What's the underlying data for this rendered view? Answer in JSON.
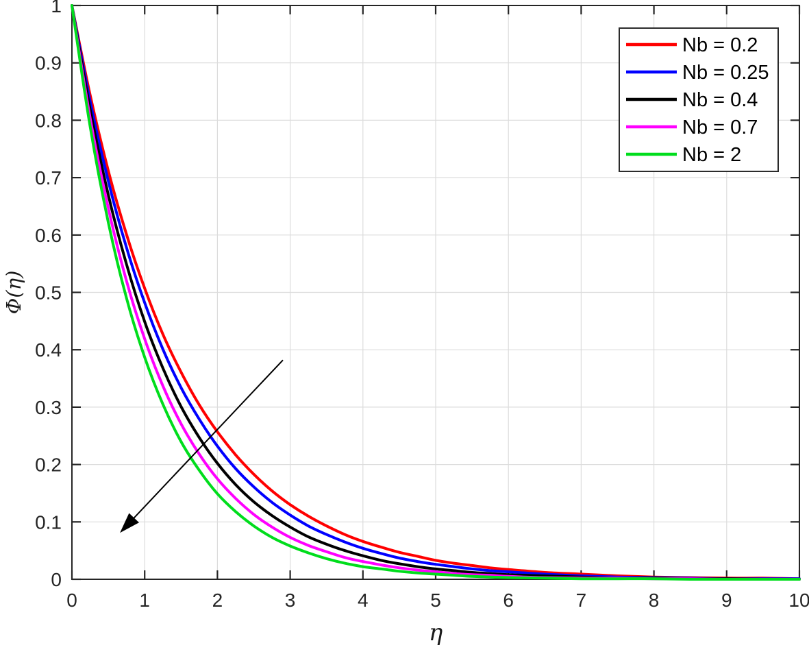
{
  "figure": {
    "background": "#ffffff",
    "axis_color": "#252525",
    "grid_color": "#dcdcdc",
    "legend_border_color": "#2b2b2b",
    "legend_background": "#ffffff",
    "arrow_color": "#000000"
  },
  "chart_data": {
    "type": "line",
    "title": "",
    "xlabel": "η",
    "ylabel": "Φ(η)",
    "xlim": [
      0,
      10
    ],
    "ylim": [
      0,
      1
    ],
    "xticks": [
      0,
      1,
      2,
      3,
      4,
      5,
      6,
      7,
      8,
      9,
      10
    ],
    "yticks": [
      0,
      0.1,
      0.2,
      0.3,
      0.4,
      0.5,
      0.6,
      0.7,
      0.8,
      0.9,
      1
    ],
    "grid": true,
    "legend_position": "top-right",
    "x": [
      0,
      0.25,
      0.5,
      0.75,
      1,
      1.25,
      1.5,
      1.75,
      2,
      2.25,
      2.5,
      2.75,
      3,
      3.25,
      3.5,
      3.75,
      4,
      4.25,
      4.5,
      4.75,
      5,
      5.25,
      5.5,
      5.75,
      6,
      6.5,
      7,
      7.5,
      8,
      8.5,
      9,
      9.5,
      10
    ],
    "series": [
      {
        "name": "Nb = 0.2",
        "color": "#ff0000",
        "values": [
          1,
          0.844,
          0.712,
          0.601,
          0.507,
          0.427,
          0.361,
          0.304,
          0.257,
          0.217,
          0.183,
          0.154,
          0.13,
          0.11,
          0.093,
          0.078,
          0.066,
          0.056,
          0.047,
          0.04,
          0.033,
          0.028,
          0.024,
          0.02,
          0.017,
          0.012,
          0.009,
          0.006,
          0.004,
          0.003,
          0.002,
          0.002,
          0.001
        ]
      },
      {
        "name": "Nb = 0.25",
        "color": "#0000ff",
        "values": [
          1,
          0.833,
          0.694,
          0.578,
          0.482,
          0.401,
          0.334,
          0.279,
          0.232,
          0.193,
          0.161,
          0.134,
          0.112,
          0.093,
          0.078,
          0.065,
          0.054,
          0.045,
          0.037,
          0.031,
          0.026,
          0.022,
          0.018,
          0.015,
          0.013,
          0.009,
          0.006,
          0.004,
          0.003,
          0.002,
          0.001,
          0.001,
          0.001
        ]
      },
      {
        "name": "Nb = 0.4",
        "color": "#000000",
        "values": [
          1,
          0.819,
          0.67,
          0.549,
          0.449,
          0.368,
          0.301,
          0.247,
          0.202,
          0.165,
          0.135,
          0.111,
          0.091,
          0.074,
          0.061,
          0.05,
          0.041,
          0.033,
          0.027,
          0.022,
          0.018,
          0.015,
          0.012,
          0.01,
          0.008,
          0.006,
          0.004,
          0.002,
          0.002,
          0.001,
          0.001,
          0,
          0
        ]
      },
      {
        "name": "Nb = 0.7",
        "color": "#ff00ff",
        "values": [
          1,
          0.804,
          0.647,
          0.52,
          0.419,
          0.337,
          0.271,
          0.218,
          0.175,
          0.141,
          0.113,
          0.091,
          0.073,
          0.059,
          0.048,
          0.038,
          0.031,
          0.025,
          0.02,
          0.016,
          0.013,
          0.01,
          0.008,
          0.007,
          0.005,
          0.003,
          0.002,
          0.002,
          0.001,
          0.001,
          0,
          0,
          0
        ]
      },
      {
        "name": "Nb = 2",
        "color": "#00dd1c",
        "values": [
          1,
          0.789,
          0.622,
          0.49,
          0.387,
          0.305,
          0.24,
          0.19,
          0.149,
          0.118,
          0.093,
          0.073,
          0.058,
          0.046,
          0.036,
          0.028,
          0.022,
          0.018,
          0.014,
          0.011,
          0.009,
          0.007,
          0.005,
          0.004,
          0.003,
          0.002,
          0.001,
          0.001,
          0.001,
          0,
          0,
          0,
          0
        ]
      }
    ],
    "annotation_arrow": {
      "from": [
        2.9,
        0.382
      ],
      "to": [
        0.66,
        0.081
      ]
    }
  }
}
